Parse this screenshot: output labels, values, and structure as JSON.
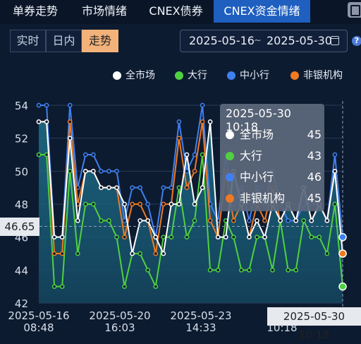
{
  "tabs": [
    {
      "label": "单券走势",
      "active": false
    },
    {
      "label": "市场情绪",
      "active": false
    },
    {
      "label": "CNEX债券",
      "active": false
    },
    {
      "label": "CNEX资金情绪",
      "active": true
    }
  ],
  "modes": [
    {
      "label": "实时",
      "active": false
    },
    {
      "label": "日内",
      "active": false
    },
    {
      "label": "走势",
      "active": true
    }
  ],
  "date_range": {
    "start": "2025-05-16",
    "separator": "~",
    "end": "2025-05-30"
  },
  "help_label": "?",
  "legend": [
    {
      "label": "全市场",
      "color": "#ffffff"
    },
    {
      "label": "大行",
      "color": "#4fd13f"
    },
    {
      "label": "中小行",
      "color": "#3f80f0"
    },
    {
      "label": "非银机构",
      "color": "#f07a22"
    }
  ],
  "tooltip": {
    "title": "2025-05-30 10:18",
    "rows": [
      {
        "name": "全市场",
        "value": "45"
      },
      {
        "name": "大行",
        "value": "43"
      },
      {
        "name": "中小行",
        "value": "46"
      },
      {
        "name": "非银机构",
        "value": "45"
      }
    ]
  },
  "crosshair": {
    "y_value": "46.65",
    "x_value": "2025-05-30 10:18"
  },
  "chart_data": {
    "type": "line",
    "ylim": [
      42,
      54
    ],
    "y_ticks": [
      "54",
      "52",
      "50",
      "48",
      "46",
      "44",
      "42"
    ],
    "x_ticks": [
      {
        "line1": "2025-05-16",
        "line2": "08:48"
      },
      {
        "line1": "2025-05-20",
        "line2": "16:03"
      },
      {
        "line1": "2025-05-23",
        "line2": "14:33"
      },
      {
        "line1": "",
        "line2": "10:18"
      }
    ],
    "series": [
      {
        "name": "全市场",
        "color": "#ffffff",
        "values": [
          53,
          53,
          46,
          46,
          52,
          47,
          50,
          50,
          49,
          49,
          49,
          48,
          45,
          47,
          47,
          46,
          45,
          48,
          48,
          51,
          48,
          49,
          53,
          46,
          46,
          50,
          48,
          46,
          47,
          46,
          48,
          47,
          48,
          47,
          49,
          47,
          48,
          47,
          50,
          45
        ]
      },
      {
        "name": "大行",
        "color": "#4fd13f",
        "values": [
          51,
          51,
          43,
          43,
          50,
          45,
          48,
          48,
          47,
          47,
          46,
          43,
          45,
          45,
          44,
          43,
          46,
          46,
          49,
          46,
          47,
          51,
          44,
          44,
          47,
          46,
          44,
          44,
          46,
          46,
          44,
          47,
          44,
          44,
          47,
          46,
          46,
          45,
          48,
          43
        ]
      },
      {
        "name": "中小行",
        "color": "#3f80f0",
        "values": [
          54,
          54,
          46,
          46,
          54,
          49,
          51,
          51,
          50,
          50,
          50,
          47,
          49,
          49,
          48,
          46,
          49,
          49,
          53,
          50,
          51,
          54,
          48,
          47,
          51,
          48,
          49,
          47,
          49,
          48,
          50,
          48,
          47,
          47,
          48,
          48,
          48,
          47,
          51,
          46
        ]
      },
      {
        "name": "非银机构",
        "color": "#f07a22",
        "values": [
          53,
          53,
          45,
          45,
          53,
          48,
          50,
          50,
          49,
          49,
          49,
          46,
          48,
          48,
          47,
          45,
          48,
          48,
          52,
          49,
          50,
          53,
          47,
          46,
          50,
          47,
          48,
          46,
          48,
          47,
          49,
          47,
          48,
          47,
          49,
          47,
          48,
          47,
          50,
          45
        ]
      }
    ]
  }
}
